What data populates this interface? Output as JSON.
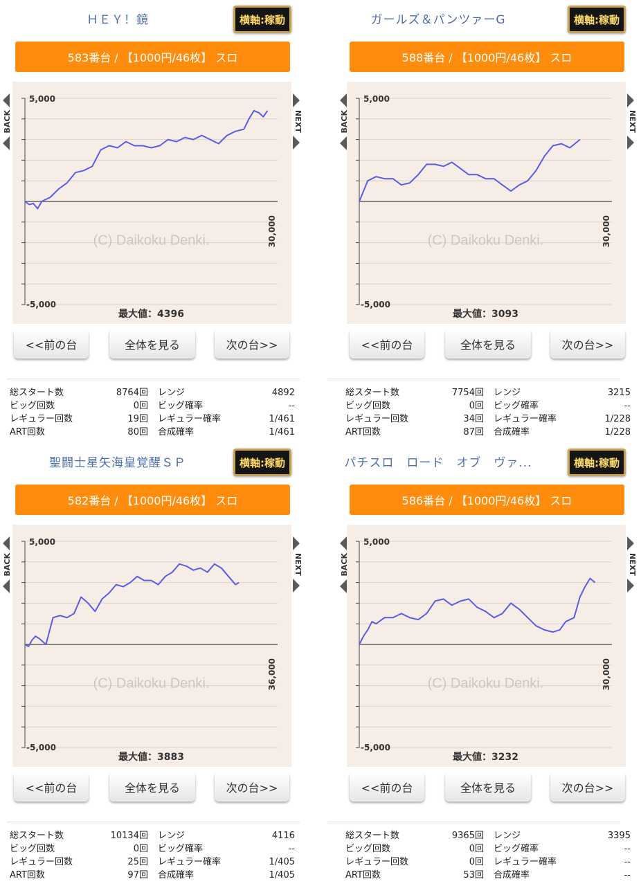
{
  "panels": [
    {
      "title": "ＨＥＹ！鏡",
      "axis_button": "横軸:稼動",
      "header": "583番台 / 【1000円/46枚】 スロ",
      "nav": {
        "back": "BACK",
        "next": "NEXT"
      },
      "chart": {
        "y_top_label": "5,000",
        "y_bottom_label": "-5,000",
        "x_end_label": "30,000",
        "watermark": "(C) Daikoku Denki.",
        "max_value_text": "最大値：4396"
      },
      "buttons": {
        "prev": "<<前の台",
        "all": "全体を見る",
        "next": "次の台>>"
      },
      "stats": {
        "labels": [
          "総スタート数",
          "ビッグ回数",
          "レギュラー回数",
          "ART回数"
        ],
        "values": [
          "8764回",
          "0回",
          "19回",
          "80回"
        ],
        "labels2": [
          "レンジ",
          "ビッグ確率",
          "レギュラー確率",
          "合成確率"
        ],
        "values2": [
          "4892",
          "--",
          "1/461",
          "1/461"
        ]
      }
    },
    {
      "title": "ガールズ＆パンツァーG",
      "axis_button": "横軸:稼動",
      "header": "588番台 / 【1000円/46枚】 スロ",
      "nav": {
        "back": "BACK",
        "next": "NEXT"
      },
      "chart": {
        "y_top_label": "5,000",
        "y_bottom_label": "-5,000",
        "x_end_label": "30,000",
        "watermark": "(C) Daikoku Denki.",
        "max_value_text": "最大値：3093"
      },
      "buttons": {
        "prev": "<<前の台",
        "all": "全体を見る",
        "next": "次の台>>"
      },
      "stats": {
        "labels": [
          "総スタート数",
          "ビッグ回数",
          "レギュラー回数",
          "ART回数"
        ],
        "values": [
          "7754回",
          "0回",
          "34回",
          "87回"
        ],
        "labels2": [
          "レンジ",
          "ビッグ確率",
          "レギュラー確率",
          "合成確率"
        ],
        "values2": [
          "3215",
          "--",
          "1/228",
          "1/228"
        ]
      }
    },
    {
      "title": "聖闘士星矢海皇覚醒ＳＰ",
      "axis_button": "横軸:稼動",
      "header": "582番台 / 【1000円/46枚】 スロ",
      "nav": {
        "back": "BACK",
        "next": "NEXT"
      },
      "chart": {
        "y_top_label": "5,000",
        "y_bottom_label": "-5,000",
        "x_end_label": "36,000",
        "watermark": "(C) Daikoku Denki.",
        "max_value_text": "最大値：3883"
      },
      "buttons": {
        "prev": "<<前の台",
        "all": "全体を見る",
        "next": "次の台>>"
      },
      "stats": {
        "labels": [
          "総スタート数",
          "ビッグ回数",
          "レギュラー回数",
          "ART回数"
        ],
        "values": [
          "10134回",
          "0回",
          "25回",
          "97回"
        ],
        "labels2": [
          "レンジ",
          "ビッグ確率",
          "レギュラー確率",
          "合成確率"
        ],
        "values2": [
          "4116",
          "--",
          "1/405",
          "1/405"
        ]
      }
    },
    {
      "title": "パチスロ　ロード　オブ　ヴァ...",
      "axis_button": "横軸:稼動",
      "header": "586番台 / 【1000円/46枚】 スロ",
      "nav": {
        "back": "BACK",
        "next": "NEXT"
      },
      "chart": {
        "y_top_label": "5,000",
        "y_bottom_label": "-5,000",
        "x_end_label": "30,000",
        "watermark": "(C) Daikoku Denki.",
        "max_value_text": "最大値：3232"
      },
      "buttons": {
        "prev": "<<前の台",
        "all": "全体を見る",
        "next": "次の台>>"
      },
      "stats": {
        "labels": [
          "総スタート数",
          "ビッグ回数",
          "レギュラー回数",
          "ART回数"
        ],
        "values": [
          "9365回",
          "0回",
          "0回",
          "53回"
        ],
        "labels2": [
          "レンジ",
          "ビッグ確率",
          "レギュラー確率",
          "合成確率"
        ],
        "values2": [
          "3395",
          "--",
          "--",
          "--"
        ]
      }
    }
  ],
  "chart_data": [
    {
      "type": "line",
      "ylim": [
        -5000,
        5000
      ],
      "xlim": [
        0,
        30000
      ],
      "grid": true,
      "x": [
        0,
        500,
        1000,
        1500,
        2000,
        3000,
        4000,
        5000,
        6000,
        7000,
        8000,
        9000,
        10000,
        11000,
        12000,
        13000,
        14000,
        15000,
        16000,
        17000,
        18000,
        19000,
        20000,
        21000,
        22000,
        23000,
        24000,
        25000,
        26000,
        26600,
        27200,
        27800,
        28300,
        28800
      ],
      "y": [
        0,
        -150,
        -100,
        -350,
        0,
        200,
        600,
        900,
        1400,
        1500,
        1700,
        2500,
        2700,
        2600,
        2900,
        2700,
        2700,
        2600,
        2700,
        3000,
        2900,
        3100,
        3000,
        3200,
        3000,
        2800,
        3200,
        3400,
        3500,
        4000,
        4400,
        4300,
        4100,
        4400
      ]
    },
    {
      "type": "line",
      "ylim": [
        -5000,
        5000
      ],
      "xlim": [
        0,
        30000
      ],
      "grid": true,
      "x": [
        0,
        1000,
        2000,
        3000,
        4000,
        5000,
        6000,
        7000,
        8000,
        9000,
        10000,
        11000,
        12000,
        13000,
        14000,
        15000,
        16000,
        17000,
        18000,
        19000,
        20000,
        21000,
        22000,
        23000,
        24000,
        25000,
        25600,
        26200
      ],
      "y": [
        0,
        1000,
        1200,
        1100,
        1100,
        800,
        900,
        1300,
        1800,
        1800,
        1700,
        1900,
        1600,
        1300,
        1300,
        1100,
        1100,
        800,
        500,
        800,
        1000,
        1500,
        2200,
        2700,
        2800,
        2600,
        2800,
        3000
      ]
    },
    {
      "type": "line",
      "ylim": [
        -5000,
        5000
      ],
      "xlim": [
        0,
        36000
      ],
      "grid": true,
      "x": [
        0,
        500,
        1000,
        1500,
        2000,
        3000,
        4000,
        5000,
        6000,
        7000,
        8000,
        9000,
        10000,
        11000,
        12000,
        13000,
        14000,
        15000,
        16000,
        17000,
        18000,
        19000,
        20000,
        21000,
        22000,
        23000,
        24000,
        25000,
        26000,
        27000,
        28000,
        29000,
        30000,
        30500
      ],
      "y": [
        0,
        -100,
        200,
        400,
        300,
        0,
        1300,
        1400,
        1300,
        1500,
        2300,
        2000,
        1600,
        2200,
        2500,
        2900,
        2800,
        3000,
        3300,
        3100,
        3100,
        2900,
        3300,
        3500,
        3900,
        3800,
        3600,
        3700,
        3500,
        3900,
        3700,
        3300,
        2900,
        3000
      ]
    },
    {
      "type": "line",
      "ylim": [
        -5000,
        5000
      ],
      "xlim": [
        0,
        30000
      ],
      "grid": true,
      "x": [
        0,
        500,
        1000,
        1500,
        2000,
        3000,
        4000,
        5000,
        6000,
        7000,
        8000,
        9000,
        10000,
        11000,
        12000,
        13000,
        14000,
        15000,
        16000,
        17000,
        18000,
        19000,
        20000,
        21000,
        22000,
        23000,
        23800,
        24500,
        25500,
        26200,
        26800,
        27400,
        28000
      ],
      "y": [
        0,
        400,
        700,
        1100,
        1000,
        1300,
        1300,
        1500,
        1300,
        1200,
        1500,
        2100,
        2200,
        1900,
        2100,
        2200,
        1800,
        1600,
        1300,
        1500,
        2000,
        1700,
        1300,
        900,
        700,
        600,
        700,
        1100,
        1300,
        2300,
        2800,
        3200,
        3000
      ]
    }
  ]
}
